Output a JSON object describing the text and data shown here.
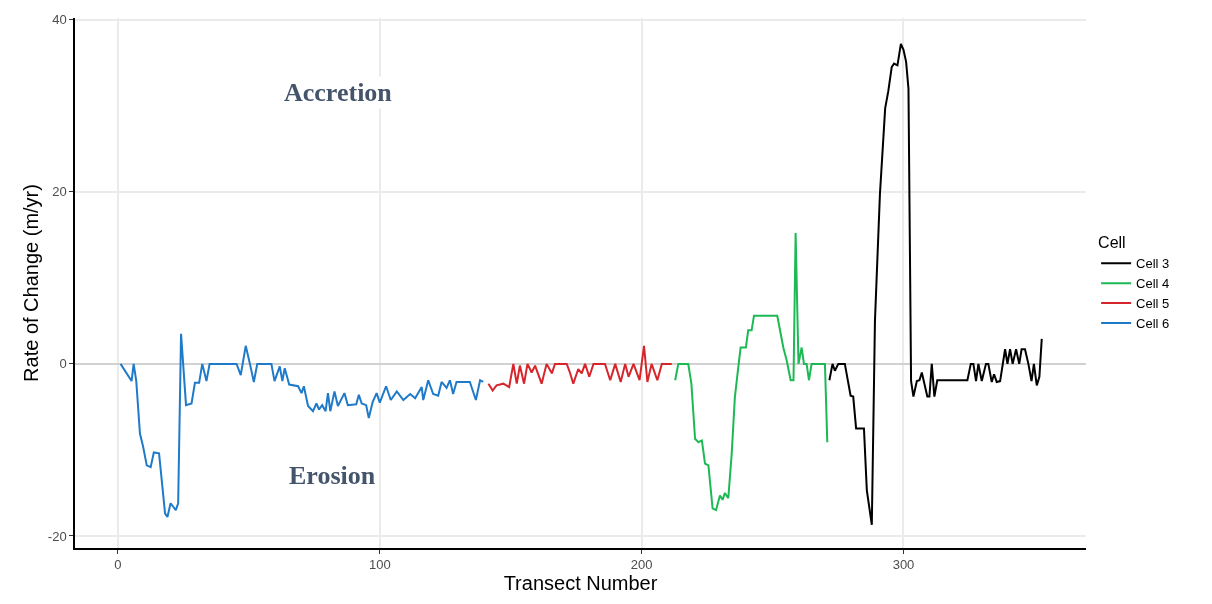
{
  "chart_data": {
    "type": "line",
    "xlabel": "Transect Number",
    "ylabel": "Rate of Change (m/yr)",
    "legend_title": "Cell",
    "annotations": [
      "Accretion",
      "Erosion"
    ],
    "xlim": [
      -16.4,
      369.7
    ],
    "ylim": [
      -21.4,
      40.2
    ],
    "xticks": [
      0,
      100,
      200,
      300
    ],
    "yticks": [
      -20,
      0,
      20,
      40
    ],
    "grid": true,
    "legend": "right",
    "marker": "none",
    "line_style": "solid",
    "ref_lines": [
      {
        "axis": "y",
        "value": 0,
        "label": null,
        "color": "#c8c8c8"
      }
    ],
    "series": [
      {
        "name": "Cell 3",
        "color": "#000000",
        "x": [
          271.7,
          272.9,
          273.8,
          275.1,
          277.6,
          279.8,
          280.8,
          281.9,
          284.9,
          286,
          287.9,
          289.1,
          291,
          293,
          294.2,
          295.5,
          296.4,
          297.7,
          299,
          300,
          301,
          301.9,
          302.9,
          303.8,
          305.1,
          306.1,
          307,
          309.1,
          309.9,
          310.8,
          311.8,
          312.9,
          324.4,
          325.7,
          326.7,
          327.7,
          328.6,
          329.9,
          331.5,
          332.4,
          333.7,
          334.6,
          335.6,
          336.9,
          338.8,
          339.7,
          340.7,
          341.7,
          343,
          344.2,
          345.1,
          346.4,
          347.7,
          348.9,
          349.8,
          350.9,
          351.9,
          352.8
        ],
        "values": [
          -1.9,
          0,
          -0.8,
          0,
          0,
          -3.7,
          -3.8,
          -7.5,
          -7.5,
          -14.7,
          -18.7,
          5.0,
          19.7,
          29.7,
          31.7,
          34.5,
          34.9,
          34.7,
          37.2,
          36.5,
          35.1,
          32.0,
          -2.0,
          -3.8,
          -2.0,
          -1.9,
          -1.0,
          -3.8,
          -3.8,
          0,
          -3.8,
          -1.9,
          -1.9,
          0,
          0,
          -2.0,
          0,
          -2.0,
          0,
          0,
          -2.1,
          -1.2,
          -2.1,
          -2.0,
          1.7,
          0,
          1.7,
          0,
          1.7,
          0,
          1.7,
          1.7,
          0,
          -2.0,
          0,
          -2.5,
          -1.5,
          2.9
        ]
      },
      {
        "name": "Cell 4",
        "color": "#1db954",
        "x": [
          212.8,
          214,
          217.8,
          219,
          220.4,
          221.7,
          223,
          224.2,
          225.5,
          227.1,
          228.4,
          229.9,
          230.9,
          231.8,
          233.1,
          234.4,
          235.6,
          236.9,
          237.8,
          239.8,
          240.7,
          242,
          242.9,
          251.8,
          254.1,
          255.4,
          256.9,
          258,
          258.8,
          259.9,
          261.1,
          262,
          263,
          263.9,
          264.9,
          270,
          270.9
        ],
        "values": [
          -1.9,
          0,
          0,
          -2.3,
          -8.7,
          -9.1,
          -8.9,
          -11.6,
          -11.8,
          -16.8,
          -17.0,
          -15.3,
          -15.8,
          -15.0,
          -15.6,
          -10.4,
          -3.9,
          -0.4,
          1.9,
          1.9,
          3.9,
          3.9,
          5.6,
          5.6,
          1.9,
          0.4,
          -1.9,
          -1.9,
          15.2,
          0,
          1.9,
          0,
          0,
          -1.9,
          0,
          0,
          -9.1
        ]
      },
      {
        "name": "Cell 5",
        "color": "#d7262b",
        "x": [
          141.5,
          143.1,
          144.6,
          147.2,
          149.4,
          151,
          152.3,
          153.5,
          155.1,
          156.4,
          158,
          159.3,
          161.8,
          163.7,
          165.7,
          166.9,
          171.4,
          172.6,
          173.9,
          175.8,
          177.1,
          178.4,
          180,
          181.6,
          186,
          188,
          189.9,
          192,
          193.7,
          195,
          196.9,
          199.2,
          200.9,
          202.2,
          203.8,
          206,
          207.7,
          211.5
        ],
        "values": [
          -2.3,
          -3.1,
          -2.5,
          -2.3,
          -2.7,
          0,
          -2.3,
          -0.2,
          -2.3,
          0,
          -1.0,
          -0.2,
          -2.3,
          0,
          -1.1,
          0,
          0,
          -1.0,
          -2.3,
          -0.6,
          -1.1,
          0,
          -1.5,
          0,
          0,
          -1.9,
          0,
          -2.1,
          0,
          -1.5,
          0,
          -1.9,
          2.1,
          -2.1,
          0,
          -1.9,
          0,
          0
        ]
      },
      {
        "name": "Cell 6",
        "color": "#1f7ac9",
        "x": [
          1,
          5.2,
          6,
          7,
          8.4,
          9.6,
          11,
          12.5,
          13.7,
          15.7,
          18,
          18.9,
          20.1,
          22.1,
          23,
          24.1,
          26,
          28.1,
          29.4,
          31,
          32.2,
          33.8,
          35,
          45.3,
          46.9,
          48.8,
          50.4,
          51.9,
          53.2,
          58.6,
          59.8,
          61.8,
          62.8,
          63.7,
          65.4,
          68.8,
          70.1,
          71,
          72.6,
          74.5,
          75.8,
          76.8,
          78,
          79.3,
          80.2,
          81.1,
          82.7,
          84,
          86.5,
          87.8,
          91,
          92,
          93.1,
          94.8,
          95.8,
          97.3,
          98.8,
          100,
          102.4,
          104.2,
          106.5,
          109,
          111.6,
          113.5,
          116,
          116.6,
          118.5,
          120.4,
          122.3,
          123.6,
          125.5,
          126.8,
          128,
          129.3,
          130.6,
          134.4,
          136.7,
          138.3,
          139.5
        ],
        "values": [
          0,
          -2.0,
          0,
          -2.0,
          -8.1,
          -9.6,
          -11.8,
          -12.0,
          -10.3,
          -10.4,
          -17.4,
          -17.8,
          -16.2,
          -17.0,
          -16.2,
          3.5,
          -4.8,
          -4.6,
          -2.2,
          -2.2,
          0,
          -2.0,
          0,
          0,
          -1.3,
          2.1,
          0,
          -2.1,
          0,
          0,
          -2.0,
          -0.3,
          -2.0,
          -0.5,
          -2.4,
          -2.6,
          -3.4,
          -2.6,
          -4.9,
          -5.5,
          -4.6,
          -5.3,
          -4.8,
          -5.5,
          -3.4,
          -5.5,
          -3.2,
          -4.9,
          -3.4,
          -4.8,
          -4.7,
          -3.6,
          -4.6,
          -4.8,
          -6.3,
          -4.4,
          -3.4,
          -4.5,
          -2.6,
          -4.2,
          -3.2,
          -4.2,
          -3.5,
          -4.0,
          -2.7,
          -4.2,
          -1.9,
          -3.5,
          -3.7,
          -2.1,
          -2.8,
          -1.9,
          -3.5,
          -2.1,
          -2.1,
          -2.1,
          -4.2,
          -1.9,
          -2.1
        ]
      }
    ]
  }
}
